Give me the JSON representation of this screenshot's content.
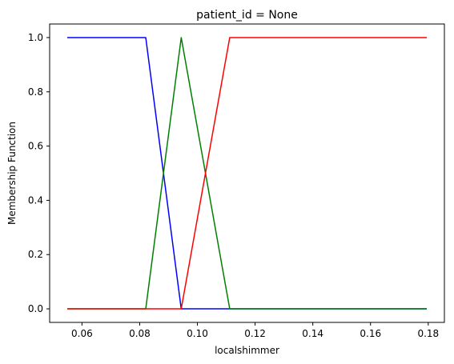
{
  "chart_data": {
    "type": "line",
    "title": "patient_id = None",
    "xlabel": "localshimmer",
    "ylabel": "Membership Function",
    "xlim": [
      0.0488,
      0.1856
    ],
    "ylim": [
      -0.05,
      1.05
    ],
    "xticks": [
      0.06,
      0.08,
      0.1,
      0.12,
      0.14,
      0.16,
      0.18
    ],
    "xtick_labels": [
      "0.06",
      "0.08",
      "0.10",
      "0.12",
      "0.14",
      "0.16",
      "0.18"
    ],
    "yticks": [
      0.0,
      0.2,
      0.4,
      0.6,
      0.8,
      1.0
    ],
    "ytick_labels": [
      "0.0",
      "0.2",
      "0.4",
      "0.6",
      "0.8",
      "1.0"
    ],
    "grid": false,
    "legend": false,
    "series": [
      {
        "color": "#0000ff",
        "x": [
          0.0549,
          0.0821,
          0.0944,
          0.1112,
          0.1795
        ],
        "y": [
          1,
          1,
          0,
          0,
          0
        ]
      },
      {
        "color": "#008000",
        "x": [
          0.0549,
          0.0821,
          0.0944,
          0.1112,
          0.1795
        ],
        "y": [
          0,
          0,
          1,
          0,
          0
        ]
      },
      {
        "color": "#ff0000",
        "x": [
          0.0549,
          0.0821,
          0.0944,
          0.1112,
          0.1795
        ],
        "y": [
          0,
          0,
          0,
          1,
          1
        ]
      }
    ]
  }
}
